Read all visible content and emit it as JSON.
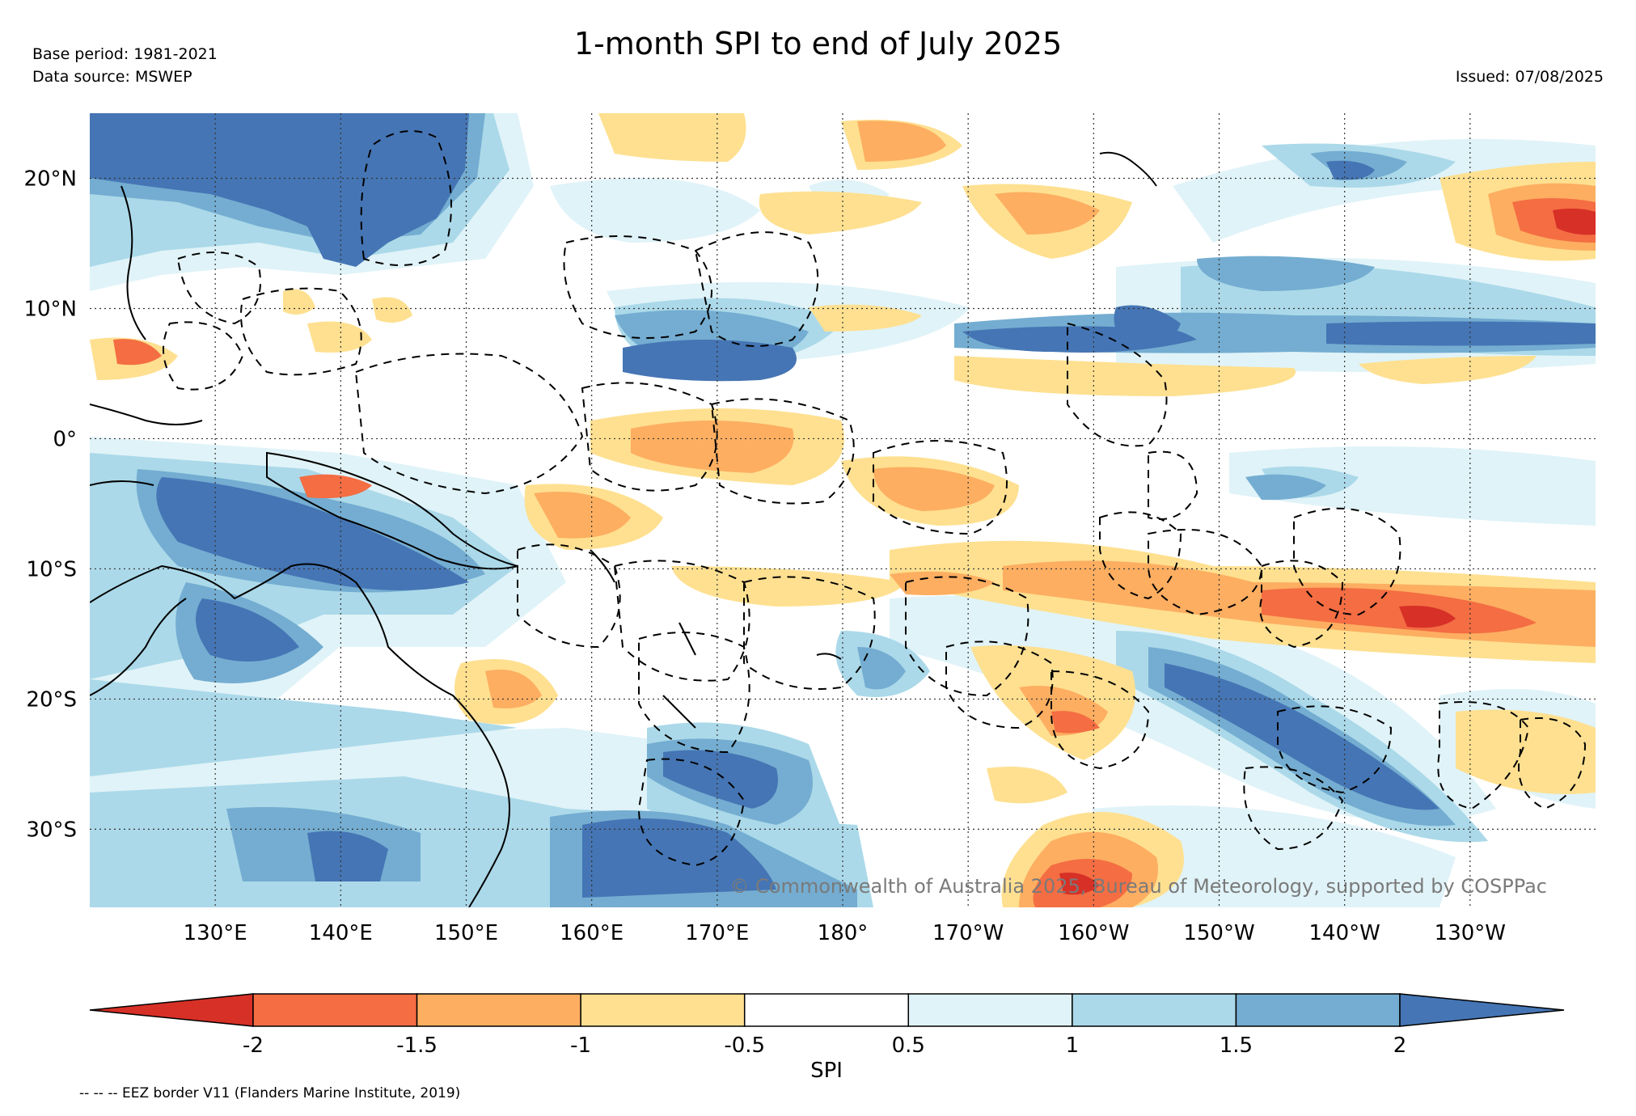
{
  "header": {
    "title": "1-month SPI to end of July 2025",
    "base_period": "Base period: 1981-2021",
    "data_source": "Data source: MSWEP",
    "issued": "Issued: 07/08/2025"
  },
  "map": {
    "lon_range_deg_east": [
      120,
      240
    ],
    "lat_range": [
      -36,
      25
    ],
    "lat_ticks": [
      {
        "value": 20,
        "label": "20°N"
      },
      {
        "value": 10,
        "label": "10°N"
      },
      {
        "value": 0,
        "label": "0°"
      },
      {
        "value": -10,
        "label": "10°S"
      },
      {
        "value": -20,
        "label": "20°S"
      },
      {
        "value": -30,
        "label": "30°S"
      }
    ],
    "lon_ticks": [
      {
        "value": 130,
        "label": "130°E"
      },
      {
        "value": 140,
        "label": "140°E"
      },
      {
        "value": 150,
        "label": "150°E"
      },
      {
        "value": 160,
        "label": "160°E"
      },
      {
        "value": 170,
        "label": "170°E"
      },
      {
        "value": 180,
        "label": "180°"
      },
      {
        "value": 190,
        "label": "170°W"
      },
      {
        "value": 200,
        "label": "160°W"
      },
      {
        "value": 210,
        "label": "150°W"
      },
      {
        "value": 220,
        "label": "140°W"
      },
      {
        "value": 230,
        "label": "130°W"
      }
    ],
    "gridlines": "dotted",
    "ocean_color": "#ffffff",
    "copyright": "© Commonwealth of Australia 2025, Bureau of Meteorology, supported by COSPPac"
  },
  "colorbar": {
    "label": "SPI",
    "bounds": [
      "-2",
      "-1.5",
      "-1",
      "-0.5",
      "0.5",
      "1",
      "1.5",
      "2"
    ],
    "colors": {
      "below_-2": "#d73027",
      "-2_to_-1.5": "#f46d43",
      "-1.5_to_-1": "#fdae61",
      "-1_to_-0.5": "#fee090",
      "-0.5_to_0.5": "#ffffff",
      "0.5_to_1": "#e0f3f8",
      "1_to_1.5": "#abd9e9",
      "1.5_to_2": "#74add1",
      "above_2": "#4575b4"
    }
  },
  "footnote": "-- -- -- EEZ border V11 (Flanders Marine Institute, 2019)"
}
